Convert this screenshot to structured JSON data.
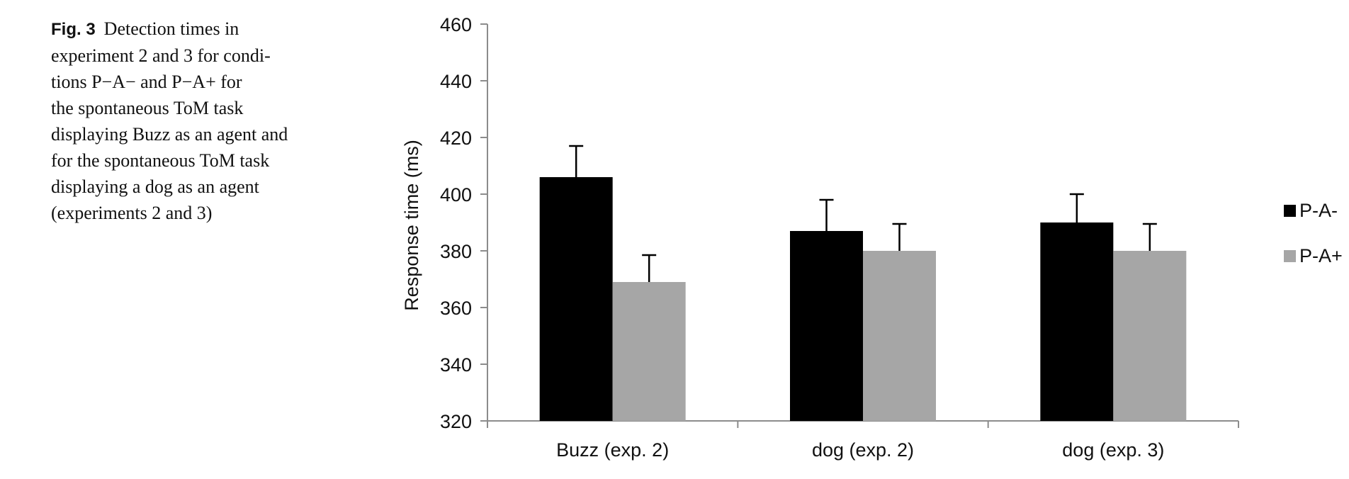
{
  "caption": {
    "label": "Fig. 3",
    "lines": [
      "Detection times in",
      "experiment 2 and 3 for condi-",
      "tions P−A− and P−A+ for",
      "the spontaneous ToM task",
      "displaying Buzz as an agent and",
      "for the spontaneous ToM task",
      "displaying a dog as an agent",
      "(experiments 2 and 3)"
    ]
  },
  "chart_data": {
    "type": "bar",
    "ylabel": "Response time (ms)",
    "xlabel": "",
    "ylim": [
      320,
      460
    ],
    "yticks": [
      320,
      340,
      360,
      380,
      400,
      420,
      440,
      460
    ],
    "categories": [
      "Buzz (exp. 2)",
      "dog (exp. 2)",
      "dog (exp. 3)"
    ],
    "series": [
      {
        "name": "P-A-",
        "color": "#000000",
        "values": [
          406,
          387,
          390
        ],
        "errors": [
          11,
          11,
          10
        ]
      },
      {
        "name": "P-A+",
        "color": "#a6a6a6",
        "values": [
          369,
          380,
          380
        ],
        "errors": [
          9.5,
          9.5,
          9.5
        ]
      }
    ],
    "legend_position": "right",
    "grid": false
  }
}
